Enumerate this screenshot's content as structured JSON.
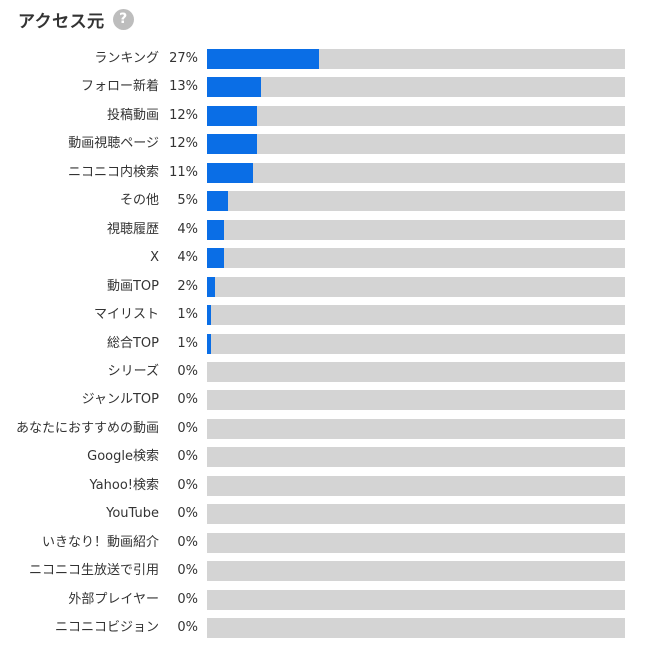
{
  "header": {
    "title": "アクセス元",
    "help_glyph": "?",
    "help_icon": "question-circle-icon"
  },
  "colors": {
    "bar_fill": "#0a6ee6",
    "bar_track": "#d4d4d4",
    "help_icon": "#bdbdbd"
  },
  "chart_data": {
    "type": "bar",
    "orientation": "horizontal",
    "title": "アクセス元",
    "xlim": [
      0,
      100
    ],
    "categories": [
      "ランキング",
      "フォロー新着",
      "投稿動画",
      "動画視聴ページ",
      "ニコニコ内検索",
      "その他",
      "視聴履歴",
      "X",
      "動画TOP",
      "マイリスト",
      "総合TOP",
      "シリーズ",
      "ジャンルTOP",
      "あなたにおすすめの動画",
      "Google検索",
      "Yahoo!検索",
      "YouTube",
      "いきなり！動画紹介",
      "ニコニコ生放送で引用",
      "外部プレイヤー",
      "ニコニコビジョン"
    ],
    "values": [
      27,
      13,
      12,
      12,
      11,
      5,
      4,
      4,
      2,
      1,
      1,
      0,
      0,
      0,
      0,
      0,
      0,
      0,
      0,
      0,
      0
    ],
    "value_labels": [
      "27%",
      "13%",
      "12%",
      "12%",
      "11%",
      "5%",
      "4%",
      "4%",
      "2%",
      "1%",
      "1%",
      "0%",
      "0%",
      "0%",
      "0%",
      "0%",
      "0%",
      "0%",
      "0%",
      "0%",
      "0%"
    ],
    "fill_fraction": [
      0.27,
      0.13,
      0.12,
      0.12,
      0.11,
      0.05,
      0.04,
      0.04,
      0.02,
      0.01,
      0.01,
      0,
      0,
      0,
      0,
      0,
      0,
      0,
      0,
      0,
      0
    ]
  }
}
